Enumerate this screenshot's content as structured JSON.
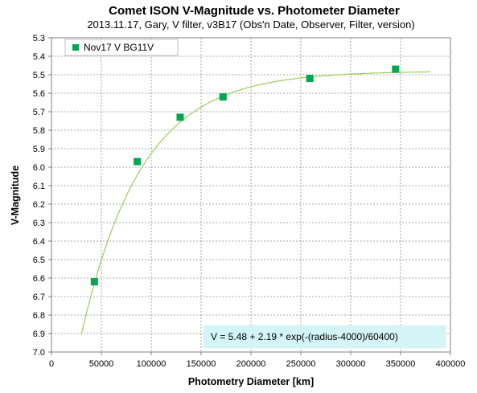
{
  "chart_data": {
    "type": "scatter",
    "title": "Comet ISON V-Magnitude vs. Photometer Diameter",
    "subtitle": "2013.11.17,  Gary, V filter, v3B17 (Obs'n Date, Observer, Filter, version)",
    "xlabel": "Photometry Diameter  [km]",
    "ylabel": "V-Magnitude",
    "xlim": [
      0,
      400000
    ],
    "ylim": [
      7.0,
      5.3
    ],
    "y_inverted": true,
    "grid": true,
    "legend_position": "top-left",
    "x_ticks": [
      0,
      50000,
      100000,
      150000,
      200000,
      250000,
      300000,
      350000,
      400000
    ],
    "y_ticks": [
      "5.3",
      "5.4",
      "5.5",
      "5.6",
      "5.7",
      "5.8",
      "5.9",
      "6.0",
      "6.1",
      "6.2",
      "6.3",
      "6.4",
      "6.5",
      "6.6",
      "6.7",
      "6.8",
      "6.9",
      "7.0"
    ],
    "series": [
      {
        "name": "Nov17 V BG11V",
        "color": "#00a650",
        "marker": "square",
        "x": [
          43000,
          86000,
          129000,
          172000,
          259000,
          345000
        ],
        "y": [
          6.62,
          5.97,
          5.73,
          5.62,
          5.52,
          5.47
        ]
      }
    ],
    "fit_curve": {
      "color": "#9acd5a",
      "x_range": [
        30000,
        380000
      ],
      "formula_text": "V = 5.48 + 2.19 * exp(-(radius-4000)/60400)"
    }
  }
}
